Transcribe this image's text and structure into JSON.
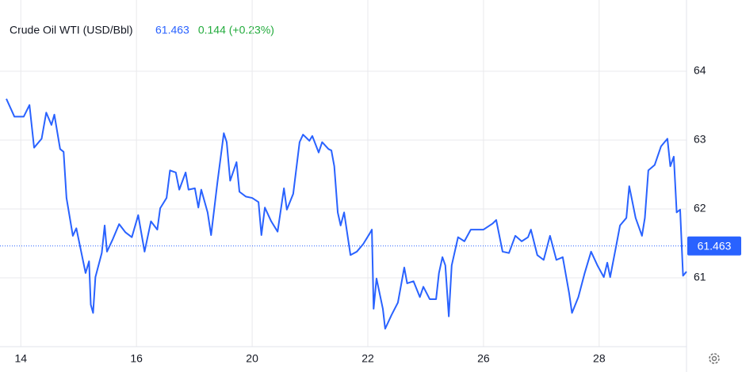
{
  "chart_data": {
    "type": "line",
    "title": "Crude Oil WTI (USD/Bbl)",
    "price": 61.463,
    "change": "0.144 (+0.23%)",
    "x": [
      -0.25,
      -0.11,
      0.05,
      0.15,
      0.23,
      0.36,
      0.44,
      0.53,
      0.58,
      0.68,
      0.74,
      0.79,
      0.9,
      0.96,
      1.12,
      1.18,
      1.21,
      1.25,
      1.29,
      1.4,
      1.45,
      1.49,
      1.59,
      1.7,
      1.81,
      1.92,
      2.03,
      2.14,
      2.25,
      2.36,
      2.41,
      2.52,
      2.58,
      2.68,
      2.74,
      2.85,
      2.9,
      3.01,
      3.07,
      3.12,
      3.23,
      3.29,
      3.4,
      3.51,
      3.56,
      3.62,
      3.73,
      3.78,
      3.89,
      4.0,
      4.11,
      4.16,
      4.22,
      4.33,
      4.44,
      4.55,
      4.6,
      4.71,
      4.82,
      4.88,
      4.99,
      5.04,
      5.15,
      5.21,
      5.32,
      5.37,
      5.42,
      5.48,
      5.53,
      5.59,
      5.7,
      5.81,
      5.92,
      6.03,
      6.07,
      6.1,
      6.15,
      6.26,
      6.3,
      6.41,
      6.52,
      6.63,
      6.68,
      6.79,
      6.9,
      6.96,
      7.07,
      7.18,
      7.23,
      7.29,
      7.34,
      7.4,
      7.45,
      7.56,
      7.67,
      7.78,
      7.89,
      8.0,
      8.16,
      8.22,
      8.33,
      8.44,
      8.55,
      8.66,
      8.77,
      8.82,
      8.93,
      9.04,
      9.15,
      9.26,
      9.37,
      9.48,
      9.53,
      9.64,
      9.75,
      9.86,
      9.97,
      10.08,
      10.14,
      10.19,
      10.3,
      10.36,
      10.47,
      10.52,
      10.63,
      10.74,
      10.79,
      10.85,
      10.96,
      11.07,
      11.18,
      11.23,
      11.29,
      11.34,
      11.4,
      11.45,
      11.51
    ],
    "series": [
      {
        "color": "#2962ff",
        "values": [
          63.6,
          63.34,
          63.34,
          63.51,
          62.89,
          63.02,
          63.4,
          63.22,
          63.37,
          62.87,
          62.83,
          62.16,
          61.61,
          61.72,
          61.07,
          61.24,
          60.61,
          60.49,
          61.01,
          61.36,
          61.76,
          61.38,
          61.56,
          61.78,
          61.66,
          61.59,
          61.91,
          61.38,
          61.82,
          61.7,
          62.01,
          62.16,
          62.56,
          62.53,
          62.28,
          62.53,
          62.28,
          62.3,
          62.02,
          62.28,
          61.95,
          61.62,
          62.39,
          63.1,
          62.97,
          62.41,
          62.68,
          62.25,
          62.18,
          62.16,
          62.1,
          61.62,
          62.02,
          61.82,
          61.67,
          62.3,
          61.99,
          62.22,
          62.97,
          63.08,
          62.99,
          63.06,
          62.82,
          62.97,
          62.87,
          62.85,
          62.62,
          61.95,
          61.76,
          61.95,
          61.33,
          61.38,
          61.49,
          61.64,
          61.7,
          60.55,
          60.99,
          60.55,
          60.26,
          60.46,
          60.64,
          61.15,
          60.92,
          60.95,
          60.72,
          60.87,
          60.69,
          60.69,
          61.07,
          61.3,
          61.18,
          60.44,
          61.18,
          61.59,
          61.53,
          61.7,
          61.7,
          61.7,
          61.79,
          61.84,
          61.38,
          61.36,
          61.61,
          61.53,
          61.59,
          61.7,
          61.33,
          61.26,
          61.61,
          61.26,
          61.3,
          60.78,
          60.49,
          60.72,
          61.07,
          61.38,
          61.18,
          61.01,
          61.22,
          61.01,
          61.49,
          61.76,
          61.87,
          62.33,
          61.87,
          61.61,
          61.87,
          62.56,
          62.64,
          62.91,
          63.02,
          62.62,
          62.76,
          61.95,
          61.99,
          61.03,
          61.09
        ]
      }
    ],
    "xlim": [
      -0.25,
      11.51
    ],
    "xticks": [
      {
        "value": 0,
        "label": "14"
      },
      {
        "value": 2,
        "label": "16"
      },
      {
        "value": 4,
        "label": "20"
      },
      {
        "value": 6,
        "label": "22"
      },
      {
        "value": 8,
        "label": "26"
      },
      {
        "value": 10,
        "label": "28"
      }
    ],
    "ylim": [
      60,
      65
    ],
    "yticks": [
      61,
      62,
      63,
      64
    ],
    "grid": true
  }
}
